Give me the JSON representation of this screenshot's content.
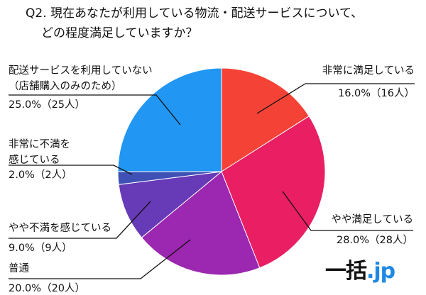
{
  "chart_data": {
    "type": "pie",
    "title_lines": [
      "Q2. 現在あなたが利用している物流・配送サービスについて、",
      "どの程度満足していますか？"
    ],
    "slices": [
      {
        "label_lines": [
          "非常に満足している"
        ],
        "value_text": "16.0%（16人）",
        "value": 16,
        "color": "#f44336"
      },
      {
        "label_lines": [
          "やや満足している"
        ],
        "value_text": "28.0%（28人）",
        "value": 28,
        "color": "#e91e63"
      },
      {
        "label_lines": [
          "普通"
        ],
        "value_text": "20.0%（20人）",
        "value": 20,
        "color": "#9c27b0"
      },
      {
        "label_lines": [
          "やや不満を感じている"
        ],
        "value_text": "9.0%（9人）",
        "value": 9,
        "color": "#673ab7"
      },
      {
        "label_lines": [
          "非常に不満を",
          "感じている"
        ],
        "value_text": "2.0%（2人）",
        "value": 2,
        "color": "#3f51b5"
      },
      {
        "label_lines": [
          "配送サービスを利用していない",
          "（店舗購入のみのため）"
        ],
        "value_text": "25.0%（25人）",
        "value": 25,
        "color": "#2196f3"
      }
    ]
  },
  "logo": {
    "text": "一括",
    "suffix": ".jp"
  }
}
